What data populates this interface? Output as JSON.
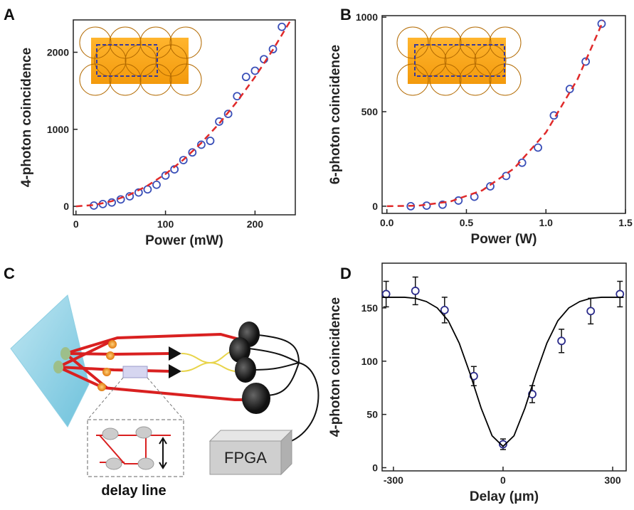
{
  "chart_data": [
    {
      "type": "scatter",
      "panel": "A",
      "xlabel": "Power (mW)",
      "ylabel": "4-photon coincidence",
      "xlim": [
        -3,
        245
      ],
      "ylim": [
        -110,
        2420
      ],
      "xticks": [
        0,
        100,
        200
      ],
      "yticks": [
        0,
        1000,
        2000
      ],
      "series": [
        {
          "style": "markers",
          "color": "#3a4fb8",
          "x": [
            20,
            30,
            40,
            50,
            60,
            70,
            80,
            90,
            100,
            110,
            120,
            130,
            140,
            150,
            160,
            170,
            180,
            190,
            200,
            210,
            220,
            230
          ],
          "values": [
            10,
            30,
            50,
            90,
            130,
            180,
            220,
            280,
            400,
            480,
            600,
            700,
            800,
            850,
            1100,
            1200,
            1430,
            1680,
            1760,
            1910,
            2040,
            2330
          ]
        },
        {
          "style": "dashed",
          "color": "#e02a2a",
          "x": [
            0,
            20,
            40,
            60,
            80,
            100,
            120,
            140,
            160,
            180,
            200,
            220,
            240
          ],
          "values": [
            0,
            17,
            67,
            151,
            269,
            420,
            605,
            823,
            1075,
            1361,
            1680,
            2033,
            2419
          ]
        }
      ]
    },
    {
      "type": "scatter",
      "panel": "B",
      "xlabel": "Power (W)",
      "ylabel": "6-photon coincidence",
      "xlim": [
        -0.03,
        1.5
      ],
      "ylim": [
        -38,
        1008
      ],
      "xticks": [
        {
          "value": 0,
          "label": "0.0"
        },
        0.5,
        {
          "value": 1,
          "label": "1.0"
        },
        1.5
      ],
      "yticks": [
        0,
        500,
        1000
      ],
      "series": [
        {
          "style": "markers",
          "color": "#3a4fb8",
          "x": [
            0.15,
            0.25,
            0.35,
            0.45,
            0.55,
            0.65,
            0.75,
            0.85,
            0.95,
            1.05,
            1.15,
            1.25,
            1.35
          ],
          "values": [
            0,
            3,
            8,
            30,
            50,
            105,
            160,
            230,
            310,
            480,
            620,
            765,
            965
          ]
        },
        {
          "style": "dashed",
          "color": "#e02a2a",
          "x": [
            0,
            0.2,
            0.4,
            0.6,
            0.8,
            1.0,
            1.2,
            1.36
          ],
          "values": [
            0,
            3,
            25,
            84,
            200,
            390,
            674,
            981
          ]
        }
      ]
    },
    {
      "type": "scatter",
      "panel": "D",
      "xlabel": "Delay (μm)",
      "ylabel": "4-photon coincidence",
      "xlim": [
        -331,
        337
      ],
      "ylim": [
        -3,
        192
      ],
      "xticks": [
        -300,
        0,
        300
      ],
      "yticks": [
        0,
        50,
        100,
        150
      ],
      "series": [
        {
          "style": "markers",
          "color": "#2a2a8a",
          "x": [
            -320,
            -240,
            -160,
            -80,
            0,
            80,
            160,
            240,
            320
          ],
          "values": [
            163,
            166,
            148,
            86,
            22,
            69,
            119,
            147,
            163
          ],
          "errors": [
            12,
            13,
            12,
            9,
            5,
            8,
            11,
            12,
            12
          ]
        },
        {
          "style": "solid",
          "color": "#000000",
          "x": [
            -330,
            -300,
            -270,
            -240,
            -210,
            -180,
            -150,
            -120,
            -90,
            -60,
            -30,
            0,
            30,
            60,
            90,
            120,
            150,
            180,
            210,
            240,
            270,
            300,
            330
          ],
          "values": [
            160,
            160,
            160,
            159,
            156,
            150,
            138,
            117,
            88,
            56,
            30,
            20,
            30,
            56,
            88,
            117,
            138,
            150,
            156,
            159,
            160,
            160,
            160
          ]
        }
      ]
    }
  ],
  "diagram": {
    "panel": "C",
    "fpga": "FPGA",
    "delay_line": "delay line"
  }
}
